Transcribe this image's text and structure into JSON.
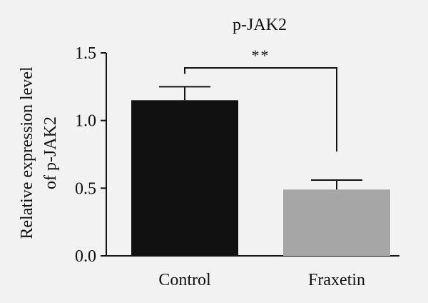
{
  "chart_data": {
    "type": "bar",
    "title": "p-JAK2",
    "ylabel_lines": [
      "Relative expression level",
      "of p-JAK2"
    ],
    "xlabel": "",
    "categories": [
      "Control",
      "Fraxetin"
    ],
    "values": [
      1.15,
      0.49
    ],
    "errors": [
      0.1,
      0.07
    ],
    "ylim": [
      0,
      1.5
    ],
    "yticks": [
      "0.0",
      "0.5",
      "1.0",
      "1.5"
    ],
    "ytick_values": [
      0.0,
      0.5,
      1.0,
      1.5
    ],
    "bar_colors": [
      "#111111",
      "#a6a6a6"
    ],
    "significance": {
      "label": "**",
      "between": [
        0,
        1
      ]
    },
    "grid": false,
    "legend": "none"
  }
}
